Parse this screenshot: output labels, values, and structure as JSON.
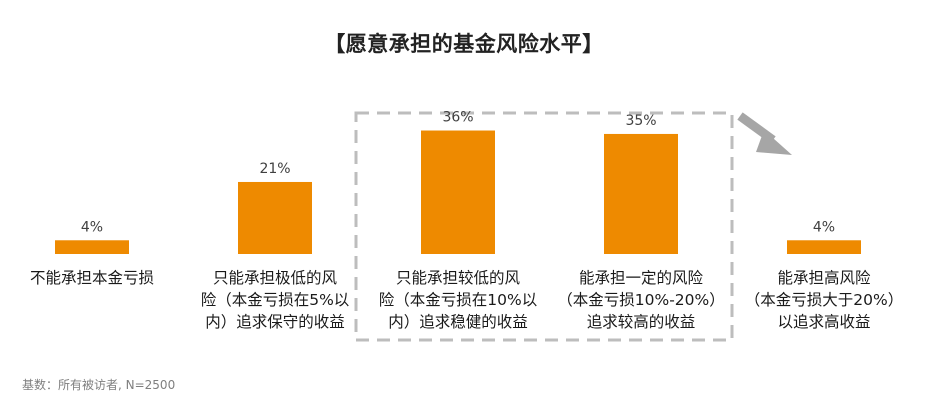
{
  "chart_data": {
    "type": "bar",
    "title": "【愿意承担的基金风险水平】",
    "categories": [
      [
        "不能承担本金亏损"
      ],
      [
        "只能承担极低的风",
        "险（本金亏损在5%以",
        "内）追求保守的收益"
      ],
      [
        "只能承担较低的风",
        "险（本金亏损在10%以",
        "内）追求稳健的收益"
      ],
      [
        "能承担一定的风险",
        "（本金亏损10%-20%）",
        "追求较高的收益"
      ],
      [
        "能承担高风险",
        "（本金亏损大于20%）",
        "以追求高收益"
      ]
    ],
    "values": [
      4,
      21,
      36,
      35,
      4
    ],
    "value_labels": [
      "4%",
      "21%",
      "36%",
      "35%",
      "4%"
    ],
    "unit": "%",
    "ylim": [
      0,
      40
    ],
    "highlight": {
      "categories": [
        2,
        3
      ],
      "style": "dashed-box"
    },
    "arrow": {
      "direction": "down-right",
      "near_category": 4
    },
    "grid": false,
    "bar_color": "#ee8a00",
    "footnote": "基数：所有被访者, N=2500"
  }
}
